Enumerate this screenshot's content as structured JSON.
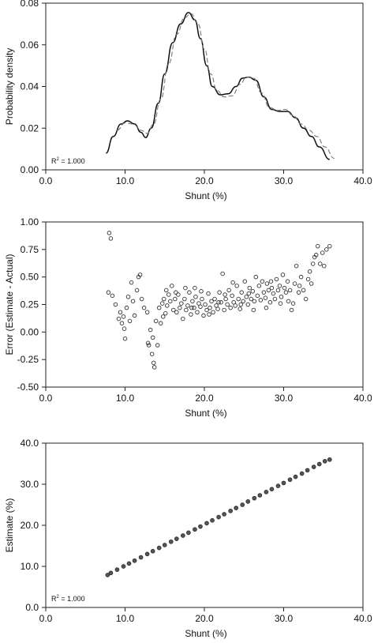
{
  "chart_data": [
    {
      "type": "line",
      "xlabel": "Shunt (%)",
      "ylabel": "Probability density",
      "xlim": [
        0,
        40
      ],
      "ylim": [
        0,
        0.08
      ],
      "x_ticks": [
        0,
        10,
        20,
        30,
        40
      ],
      "x_tick_labels": [
        "0.0",
        "10.0",
        "20.0",
        "30.0",
        "40.0"
      ],
      "y_ticks": [
        0,
        0.02,
        0.04,
        0.06,
        0.08
      ],
      "y_tick_labels": [
        "0.00",
        "0.02",
        "0.04",
        "0.06",
        "0.08"
      ],
      "annotation": "R2 = 1.000",
      "series": [
        {
          "style": "solid",
          "points": [
            [
              7.6,
              0.008
            ],
            [
              8.5,
              0.016
            ],
            [
              9.5,
              0.022
            ],
            [
              10.3,
              0.0235
            ],
            [
              11.2,
              0.022
            ],
            [
              12.0,
              0.018
            ],
            [
              12.6,
              0.0155
            ],
            [
              13.3,
              0.02
            ],
            [
              14.2,
              0.032
            ],
            [
              15.0,
              0.046
            ],
            [
              16.0,
              0.061
            ],
            [
              17.0,
              0.07
            ],
            [
              18.0,
              0.0755
            ],
            [
              18.8,
              0.072
            ],
            [
              19.5,
              0.063
            ],
            [
              20.3,
              0.05
            ],
            [
              21.0,
              0.04
            ],
            [
              22.0,
              0.036
            ],
            [
              23.0,
              0.0365
            ],
            [
              24.0,
              0.04
            ],
            [
              24.8,
              0.044
            ],
            [
              25.6,
              0.0445
            ],
            [
              26.5,
              0.043
            ],
            [
              27.5,
              0.035
            ],
            [
              28.5,
              0.029
            ],
            [
              29.5,
              0.028
            ],
            [
              30.5,
              0.028
            ],
            [
              31.5,
              0.025
            ],
            [
              32.5,
              0.02
            ],
            [
              33.5,
              0.016
            ],
            [
              34.5,
              0.011
            ],
            [
              35.8,
              0.005
            ]
          ]
        },
        {
          "style": "dashed",
          "points": [
            [
              9.0,
              0.019
            ],
            [
              10.0,
              0.0225
            ],
            [
              11.0,
              0.022
            ],
            [
              12.0,
              0.019
            ],
            [
              12.8,
              0.0175
            ],
            [
              13.6,
              0.022
            ],
            [
              14.5,
              0.034
            ],
            [
              15.5,
              0.051
            ],
            [
              16.5,
              0.065
            ],
            [
              17.5,
              0.073
            ],
            [
              18.3,
              0.075
            ],
            [
              19.2,
              0.07
            ],
            [
              20.0,
              0.058
            ],
            [
              20.8,
              0.046
            ],
            [
              21.6,
              0.038
            ],
            [
              22.5,
              0.035
            ],
            [
              23.5,
              0.0355
            ],
            [
              24.5,
              0.041
            ],
            [
              25.3,
              0.0445
            ],
            [
              26.2,
              0.044
            ],
            [
              27.2,
              0.037
            ],
            [
              28.2,
              0.03
            ],
            [
              29.2,
              0.0285
            ],
            [
              30.2,
              0.029
            ],
            [
              31.2,
              0.026
            ],
            [
              32.2,
              0.022
            ],
            [
              33.2,
              0.019
            ],
            [
              34.2,
              0.016
            ],
            [
              35.2,
              0.011
            ],
            [
              36.4,
              0.0055
            ]
          ]
        }
      ]
    },
    {
      "type": "scatter",
      "xlabel": "Shunt (%)",
      "ylabel": "Error (Estimate - Actual)",
      "xlim": [
        0,
        40
      ],
      "ylim": [
        -0.5,
        1.0
      ],
      "x_ticks": [
        0,
        10,
        20,
        30,
        40
      ],
      "x_tick_labels": [
        "0.0",
        "10.0",
        "20.0",
        "30.0",
        "40.0"
      ],
      "y_ticks": [
        -0.5,
        -0.25,
        0,
        0.25,
        0.5,
        0.75,
        1.0
      ],
      "y_tick_labels": [
        "-0.50",
        "-0.25",
        "0.00",
        "0.25",
        "0.50",
        "0.75",
        "1.00"
      ],
      "points": [
        [
          8.0,
          0.9
        ],
        [
          8.2,
          0.85
        ],
        [
          7.9,
          0.36
        ],
        [
          8.4,
          0.33
        ],
        [
          8.8,
          0.25
        ],
        [
          9.2,
          0.12
        ],
        [
          9.4,
          0.18
        ],
        [
          9.6,
          0.08
        ],
        [
          9.8,
          0.14
        ],
        [
          9.9,
          0.03
        ],
        [
          10.0,
          -0.06
        ],
        [
          10.2,
          0.22
        ],
        [
          10.4,
          0.32
        ],
        [
          10.6,
          0.1
        ],
        [
          10.8,
          0.45
        ],
        [
          11.0,
          0.28
        ],
        [
          11.2,
          0.15
        ],
        [
          11.5,
          0.38
        ],
        [
          11.7,
          0.5
        ],
        [
          11.9,
          0.52
        ],
        [
          12.1,
          0.3
        ],
        [
          12.4,
          0.22
        ],
        [
          12.8,
          0.18
        ],
        [
          12.9,
          -0.1
        ],
        [
          13.0,
          -0.12
        ],
        [
          13.2,
          0.02
        ],
        [
          13.4,
          -0.2
        ],
        [
          13.5,
          -0.05
        ],
        [
          13.6,
          -0.28
        ],
        [
          13.7,
          -0.32
        ],
        [
          13.9,
          0.1
        ],
        [
          14.1,
          -0.12
        ],
        [
          14.3,
          0.22
        ],
        [
          14.5,
          0.08
        ],
        [
          14.7,
          0.26
        ],
        [
          14.9,
          0.3
        ],
        [
          15.1,
          0.17
        ],
        [
          15.3,
          0.24
        ],
        [
          15.5,
          0.34
        ],
        [
          15.7,
          0.28
        ],
        [
          15.9,
          0.42
        ],
        [
          16.1,
          0.2
        ],
        [
          16.3,
          0.3
        ],
        [
          16.5,
          0.18
        ],
        [
          16.7,
          0.34
        ],
        [
          16.9,
          0.22
        ],
        [
          17.1,
          0.26
        ],
        [
          17.3,
          0.12
        ],
        [
          17.5,
          0.3
        ],
        [
          17.7,
          0.2
        ],
        [
          17.9,
          0.24
        ],
        [
          18.1,
          0.36
        ],
        [
          18.3,
          0.16
        ],
        [
          18.5,
          0.28
        ],
        [
          18.7,
          0.22
        ],
        [
          18.9,
          0.32
        ],
        [
          19.1,
          0.18
        ],
        [
          19.3,
          0.26
        ],
        [
          19.5,
          0.23
        ],
        [
          19.7,
          0.3
        ],
        [
          19.9,
          0.15
        ],
        [
          20.1,
          0.25
        ],
        [
          20.3,
          0.2
        ],
        [
          20.5,
          0.35
        ],
        [
          20.7,
          0.22
        ],
        [
          20.9,
          0.28
        ],
        [
          21.1,
          0.18
        ],
        [
          21.3,
          0.3
        ],
        [
          21.5,
          0.24
        ],
        [
          21.7,
          0.21
        ],
        [
          21.9,
          0.36
        ],
        [
          22.1,
          0.27
        ],
        [
          22.3,
          0.53
        ],
        [
          22.5,
          0.2
        ],
        [
          22.7,
          0.3
        ],
        [
          22.9,
          0.25
        ],
        [
          23.1,
          0.38
        ],
        [
          23.3,
          0.22
        ],
        [
          23.5,
          0.33
        ],
        [
          23.7,
          0.27
        ],
        [
          23.9,
          0.24
        ],
        [
          24.1,
          0.42
        ],
        [
          24.3,
          0.3
        ],
        [
          24.5,
          0.21
        ],
        [
          24.7,
          0.36
        ],
        [
          24.9,
          0.28
        ],
        [
          25.1,
          0.46
        ],
        [
          25.3,
          0.32
        ],
        [
          25.5,
          0.25
        ],
        [
          25.7,
          0.4
        ],
        [
          25.9,
          0.3
        ],
        [
          26.1,
          0.37
        ],
        [
          26.3,
          0.28
        ],
        [
          26.5,
          0.5
        ],
        [
          26.7,
          0.33
        ],
        [
          26.9,
          0.42
        ],
        [
          27.1,
          0.29
        ],
        [
          27.3,
          0.46
        ],
        [
          27.5,
          0.36
        ],
        [
          27.7,
          0.31
        ],
        [
          27.9,
          0.44
        ],
        [
          28.1,
          0.38
        ],
        [
          28.3,
          0.27
        ],
        [
          28.5,
          0.4
        ],
        [
          28.7,
          0.35
        ],
        [
          28.9,
          0.3
        ],
        [
          29.1,
          0.48
        ],
        [
          29.3,
          0.38
        ],
        [
          29.5,
          0.42
        ],
        [
          29.7,
          0.32
        ],
        [
          29.9,
          0.52
        ],
        [
          30.1,
          0.4
        ],
        [
          30.3,
          0.36
        ],
        [
          30.5,
          0.46
        ],
        [
          30.8,
          0.38
        ],
        [
          31.0,
          0.2
        ],
        [
          31.2,
          0.26
        ],
        [
          31.4,
          0.44
        ],
        [
          31.6,
          0.6
        ],
        [
          31.9,
          0.36
        ],
        [
          32.2,
          0.5
        ],
        [
          32.5,
          0.38
        ],
        [
          32.8,
          0.3
        ],
        [
          33.1,
          0.48
        ],
        [
          33.3,
          0.55
        ],
        [
          33.5,
          0.44
        ],
        [
          33.7,
          0.62
        ],
        [
          33.9,
          0.68
        ],
        [
          34.1,
          0.7
        ],
        [
          34.3,
          0.78
        ],
        [
          34.6,
          0.62
        ],
        [
          34.9,
          0.72
        ],
        [
          35.1,
          0.6
        ],
        [
          35.4,
          0.75
        ],
        [
          35.8,
          0.78
        ],
        [
          16.4,
          0.36
        ],
        [
          17.6,
          0.4
        ],
        [
          18.4,
          0.22
        ],
        [
          19.6,
          0.37
        ],
        [
          21.8,
          0.27
        ],
        [
          23.6,
          0.45
        ],
        [
          24.6,
          0.25
        ],
        [
          26.2,
          0.2
        ],
        [
          27.8,
          0.22
        ],
        [
          29.6,
          0.26
        ],
        [
          15.2,
          0.38
        ],
        [
          14.8,
          0.14
        ],
        [
          18.8,
          0.4
        ],
        [
          20.6,
          0.16
        ],
        [
          22.6,
          0.34
        ],
        [
          25.6,
          0.35
        ],
        [
          28.4,
          0.46
        ],
        [
          30.6,
          0.28
        ],
        [
          32.0,
          0.42
        ]
      ]
    },
    {
      "type": "scatter",
      "xlabel": "Shunt (%)",
      "ylabel": "Estimate (%)",
      "xlim": [
        0,
        40
      ],
      "ylim": [
        0,
        40
      ],
      "x_ticks": [
        0,
        10,
        20,
        30,
        40
      ],
      "x_tick_labels": [
        "0.0",
        "10.0",
        "20.0",
        "30.0",
        "40.0"
      ],
      "y_ticks": [
        0,
        10,
        20,
        30,
        40
      ],
      "y_tick_labels": [
        "0.0",
        "10.0",
        "20.0",
        "30.0",
        "40.0"
      ],
      "annotation": "R2 = 1.000",
      "points": [
        [
          7.8,
          7.9
        ],
        [
          8.2,
          8.4
        ],
        [
          9.0,
          9.2
        ],
        [
          9.8,
          10.0
        ],
        [
          10.5,
          10.7
        ],
        [
          11.2,
          11.4
        ],
        [
          12.0,
          12.2
        ],
        [
          12.8,
          13.0
        ],
        [
          13.5,
          13.7
        ],
        [
          14.3,
          14.5
        ],
        [
          15.0,
          15.2
        ],
        [
          15.8,
          16.0
        ],
        [
          16.5,
          16.7
        ],
        [
          17.3,
          17.5
        ],
        [
          18.0,
          18.2
        ],
        [
          18.8,
          19.0
        ],
        [
          19.5,
          19.7
        ],
        [
          20.3,
          20.5
        ],
        [
          21.0,
          21.2
        ],
        [
          21.8,
          22.0
        ],
        [
          22.5,
          22.7
        ],
        [
          23.3,
          23.5
        ],
        [
          24.0,
          24.2
        ],
        [
          24.8,
          25.0
        ],
        [
          25.5,
          25.8
        ],
        [
          26.3,
          26.6
        ],
        [
          27.0,
          27.3
        ],
        [
          27.8,
          28.1
        ],
        [
          28.5,
          28.8
        ],
        [
          29.3,
          29.6
        ],
        [
          30.0,
          30.3
        ],
        [
          30.8,
          31.1
        ],
        [
          31.5,
          31.8
        ],
        [
          32.3,
          32.6
        ],
        [
          33.0,
          33.4
        ],
        [
          33.8,
          34.2
        ],
        [
          34.5,
          34.9
        ],
        [
          35.2,
          35.6
        ],
        [
          35.8,
          36.0
        ]
      ]
    }
  ]
}
